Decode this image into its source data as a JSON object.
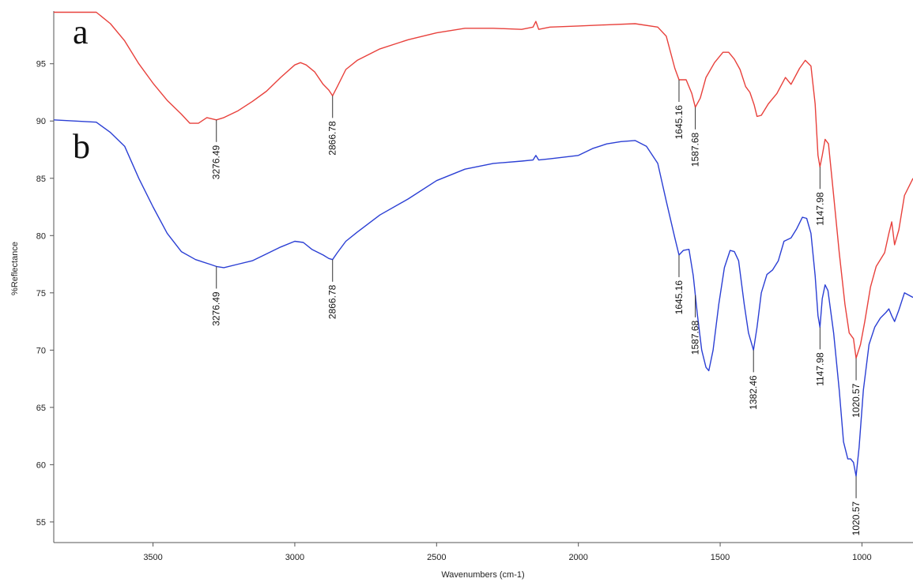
{
  "chart_data": {
    "type": "line",
    "xlabel": "Wavenumbers (cm-1)",
    "ylabel": "%Reflectance",
    "xlim": [
      3850,
      820
    ],
    "ylim": [
      53.2,
      99.6
    ],
    "x_reversed": true,
    "grid": false,
    "x_ticks": [
      3500,
      3000,
      2500,
      2000,
      1500,
      1000
    ],
    "y_ticks": [
      55,
      60,
      65,
      70,
      75,
      80,
      85,
      90,
      95
    ],
    "series": [
      {
        "name": "a",
        "color": "#e8413c",
        "points": [
          [
            3850,
            99.5
          ],
          [
            3700,
            99.5
          ],
          [
            3650,
            98.5
          ],
          [
            3600,
            97.0
          ],
          [
            3550,
            95.0
          ],
          [
            3500,
            93.3
          ],
          [
            3450,
            91.8
          ],
          [
            3400,
            90.6
          ],
          [
            3370,
            89.8
          ],
          [
            3340,
            89.8
          ],
          [
            3310,
            90.3
          ],
          [
            3276.49,
            90.1
          ],
          [
            3250,
            90.3
          ],
          [
            3200,
            90.9
          ],
          [
            3150,
            91.7
          ],
          [
            3100,
            92.6
          ],
          [
            3050,
            93.8
          ],
          [
            3000,
            94.9
          ],
          [
            2980,
            95.1
          ],
          [
            2960,
            94.9
          ],
          [
            2930,
            94.3
          ],
          [
            2900,
            93.2
          ],
          [
            2880,
            92.7
          ],
          [
            2866.78,
            92.2
          ],
          [
            2850,
            93.0
          ],
          [
            2820,
            94.5
          ],
          [
            2780,
            95.3
          ],
          [
            2700,
            96.3
          ],
          [
            2600,
            97.1
          ],
          [
            2500,
            97.7
          ],
          [
            2400,
            98.1
          ],
          [
            2300,
            98.1
          ],
          [
            2200,
            98.0
          ],
          [
            2160,
            98.2
          ],
          [
            2150,
            98.7
          ],
          [
            2140,
            98.0
          ],
          [
            2100,
            98.2
          ],
          [
            2000,
            98.3
          ],
          [
            1900,
            98.4
          ],
          [
            1800,
            98.5
          ],
          [
            1720,
            98.2
          ],
          [
            1690,
            97.4
          ],
          [
            1660,
            94.6
          ],
          [
            1645.16,
            93.6
          ],
          [
            1620,
            93.6
          ],
          [
            1600,
            92.4
          ],
          [
            1587.68,
            91.2
          ],
          [
            1570,
            92.0
          ],
          [
            1550,
            93.8
          ],
          [
            1520,
            95.1
          ],
          [
            1490,
            96.0
          ],
          [
            1470,
            96.0
          ],
          [
            1450,
            95.4
          ],
          [
            1430,
            94.5
          ],
          [
            1410,
            93.0
          ],
          [
            1395,
            92.5
          ],
          [
            1380,
            91.4
          ],
          [
            1370,
            90.4
          ],
          [
            1355,
            90.5
          ],
          [
            1330,
            91.5
          ],
          [
            1300,
            92.4
          ],
          [
            1270,
            93.8
          ],
          [
            1250,
            93.2
          ],
          [
            1220,
            94.6
          ],
          [
            1200,
            95.3
          ],
          [
            1180,
            94.8
          ],
          [
            1165,
            91.5
          ],
          [
            1155,
            87.0
          ],
          [
            1147.98,
            86.0
          ],
          [
            1140,
            87.0
          ],
          [
            1130,
            88.4
          ],
          [
            1118,
            88.0
          ],
          [
            1100,
            83.5
          ],
          [
            1080,
            78.5
          ],
          [
            1060,
            74.0
          ],
          [
            1045,
            71.5
          ],
          [
            1030,
            71.0
          ],
          [
            1020.57,
            69.3
          ],
          [
            1005,
            70.5
          ],
          [
            990,
            72.5
          ],
          [
            970,
            75.5
          ],
          [
            950,
            77.3
          ],
          [
            920,
            78.5
          ],
          [
            905,
            80.2
          ],
          [
            895,
            81.2
          ],
          [
            885,
            79.2
          ],
          [
            870,
            80.5
          ],
          [
            850,
            83.5
          ],
          [
            820,
            85.0
          ]
        ],
        "peaks": [
          3276.49,
          2866.78,
          1645.16,
          1587.68,
          1147.98,
          1020.57
        ]
      },
      {
        "name": "b",
        "color": "#2b3fd4",
        "points": [
          [
            3850,
            90.1
          ],
          [
            3700,
            89.9
          ],
          [
            3650,
            89.0
          ],
          [
            3600,
            87.8
          ],
          [
            3550,
            85.0
          ],
          [
            3500,
            82.5
          ],
          [
            3450,
            80.2
          ],
          [
            3400,
            78.6
          ],
          [
            3350,
            77.9
          ],
          [
            3300,
            77.5
          ],
          [
            3276.49,
            77.3
          ],
          [
            3250,
            77.2
          ],
          [
            3200,
            77.5
          ],
          [
            3150,
            77.8
          ],
          [
            3100,
            78.4
          ],
          [
            3050,
            79.0
          ],
          [
            3000,
            79.5
          ],
          [
            2970,
            79.4
          ],
          [
            2940,
            78.8
          ],
          [
            2900,
            78.3
          ],
          [
            2880,
            78.0
          ],
          [
            2866.78,
            77.9
          ],
          [
            2850,
            78.5
          ],
          [
            2820,
            79.5
          ],
          [
            2780,
            80.3
          ],
          [
            2700,
            81.8
          ],
          [
            2600,
            83.2
          ],
          [
            2500,
            84.8
          ],
          [
            2400,
            85.8
          ],
          [
            2300,
            86.3
          ],
          [
            2200,
            86.5
          ],
          [
            2160,
            86.6
          ],
          [
            2150,
            87.0
          ],
          [
            2140,
            86.6
          ],
          [
            2100,
            86.7
          ],
          [
            2000,
            87.0
          ],
          [
            1950,
            87.6
          ],
          [
            1900,
            88.0
          ],
          [
            1850,
            88.2
          ],
          [
            1800,
            88.3
          ],
          [
            1760,
            87.8
          ],
          [
            1720,
            86.3
          ],
          [
            1690,
            83.0
          ],
          [
            1660,
            79.8
          ],
          [
            1645.16,
            78.3
          ],
          [
            1630,
            78.7
          ],
          [
            1610,
            78.8
          ],
          [
            1595,
            76.5
          ],
          [
            1580,
            73.0
          ],
          [
            1565,
            70.0
          ],
          [
            1550,
            68.5
          ],
          [
            1540,
            68.2
          ],
          [
            1525,
            70.0
          ],
          [
            1505,
            74.0
          ],
          [
            1485,
            77.2
          ],
          [
            1465,
            78.7
          ],
          [
            1450,
            78.6
          ],
          [
            1435,
            77.8
          ],
          [
            1415,
            74.0
          ],
          [
            1400,
            71.5
          ],
          [
            1382.46,
            70.0
          ],
          [
            1370,
            72.0
          ],
          [
            1355,
            75.0
          ],
          [
            1335,
            76.6
          ],
          [
            1315,
            77.0
          ],
          [
            1295,
            77.8
          ],
          [
            1275,
            79.5
          ],
          [
            1250,
            79.8
          ],
          [
            1230,
            80.6
          ],
          [
            1210,
            81.6
          ],
          [
            1195,
            81.5
          ],
          [
            1180,
            80.2
          ],
          [
            1165,
            76.5
          ],
          [
            1155,
            73.0
          ],
          [
            1147.98,
            72.0
          ],
          [
            1140,
            74.5
          ],
          [
            1130,
            75.7
          ],
          [
            1120,
            75.2
          ],
          [
            1100,
            71.5
          ],
          [
            1080,
            66.5
          ],
          [
            1065,
            62.0
          ],
          [
            1050,
            60.5
          ],
          [
            1040,
            60.5
          ],
          [
            1030,
            60.2
          ],
          [
            1020.57,
            59.0
          ],
          [
            1010,
            61.5
          ],
          [
            995,
            66.5
          ],
          [
            975,
            70.5
          ],
          [
            955,
            72.0
          ],
          [
            935,
            72.8
          ],
          [
            915,
            73.3
          ],
          [
            905,
            73.6
          ],
          [
            895,
            73.0
          ],
          [
            885,
            72.5
          ],
          [
            870,
            73.5
          ],
          [
            850,
            75.0
          ],
          [
            820,
            74.6
          ]
        ],
        "peaks": [
          3276.49,
          2866.78,
          1645.16,
          1587.68,
          1382.46,
          1147.98,
          1020.57
        ]
      }
    ]
  }
}
